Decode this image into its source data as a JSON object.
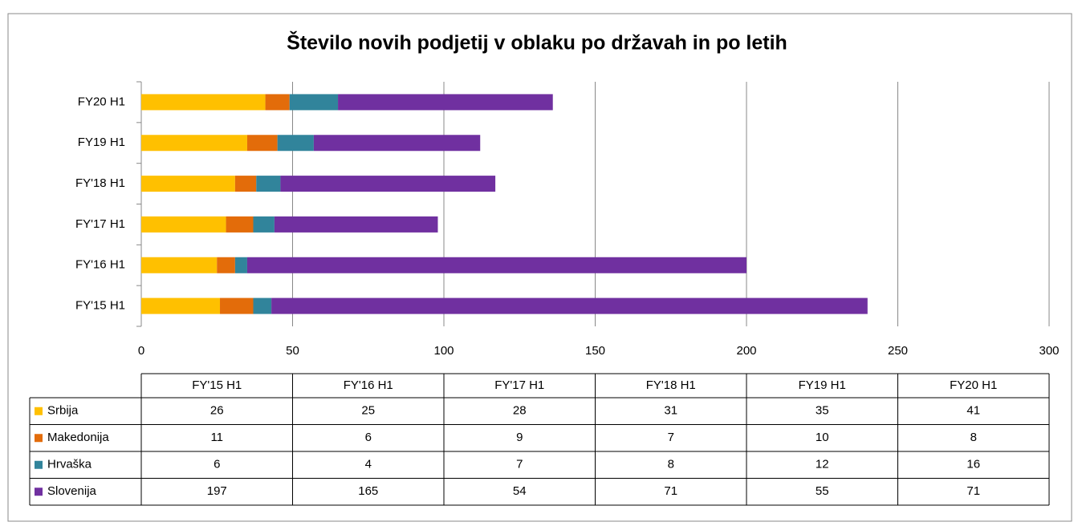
{
  "chart_data": {
    "type": "stacked-bar-horizontal",
    "title": "Število novih podjetij v oblaku po državah in po letih",
    "categories": [
      "FY'15 H1",
      "FY'16 H1",
      "FY'17 H1",
      "FY'18 H1",
      "FY19 H1",
      "FY20 H1"
    ],
    "series": [
      {
        "name": "Srbija",
        "color": "#ffc000",
        "values": [
          26,
          25,
          28,
          31,
          35,
          41
        ]
      },
      {
        "name": "Makedonija",
        "color": "#e36c0a",
        "values": [
          11,
          6,
          9,
          7,
          10,
          8
        ]
      },
      {
        "name": "Hrvaška",
        "color": "#31849b",
        "values": [
          6,
          4,
          7,
          8,
          12,
          16
        ]
      },
      {
        "name": "Slovenija",
        "color": "#7030a0",
        "values": [
          197,
          165,
          54,
          71,
          55,
          71
        ]
      }
    ],
    "xlim": [
      0,
      300
    ],
    "xticks": [
      0,
      50,
      100,
      150,
      200,
      250,
      300
    ],
    "grid": true,
    "data_table": true
  }
}
